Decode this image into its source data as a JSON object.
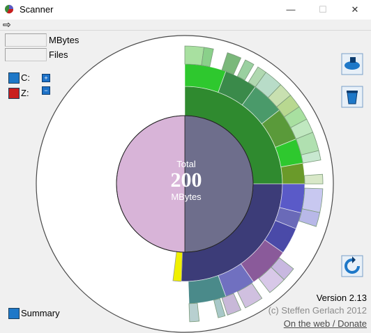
{
  "window": {
    "title": "Scanner",
    "minimize": "—",
    "maximize": "☐",
    "close": "✕"
  },
  "toolbar": {
    "arrow": "⇨"
  },
  "stats": {
    "mbytes_value": "",
    "mbytes_label": "MBytes",
    "files_value": "",
    "files_label": "Files"
  },
  "drives": [
    {
      "label": "C:",
      "color": "#1e78c8",
      "action": "+"
    },
    {
      "label": "Z:",
      "color": "#c81e1e",
      "action": "−"
    }
  ],
  "center": {
    "top": "Total",
    "value": "200",
    "unit": "MBytes"
  },
  "footer": {
    "version": "Version 2.13",
    "copyright": "(c) Steffen Gerlach 2012",
    "link": "On the web / Donate",
    "summary": "Summary"
  },
  "colors": {
    "greenDark": "#2f8a2f",
    "greenBright": "#2ec82e",
    "greenLight": "#a8e0a0",
    "navy": "#3c3c78",
    "blue": "#5a5ac8",
    "lavender": "#c8b8e0",
    "mauve": "#d8b4d8",
    "slate": "#6e6e8c",
    "teal": "#4a8a8a",
    "purple": "#8a5a9a",
    "yellow": "#f0f000"
  }
}
